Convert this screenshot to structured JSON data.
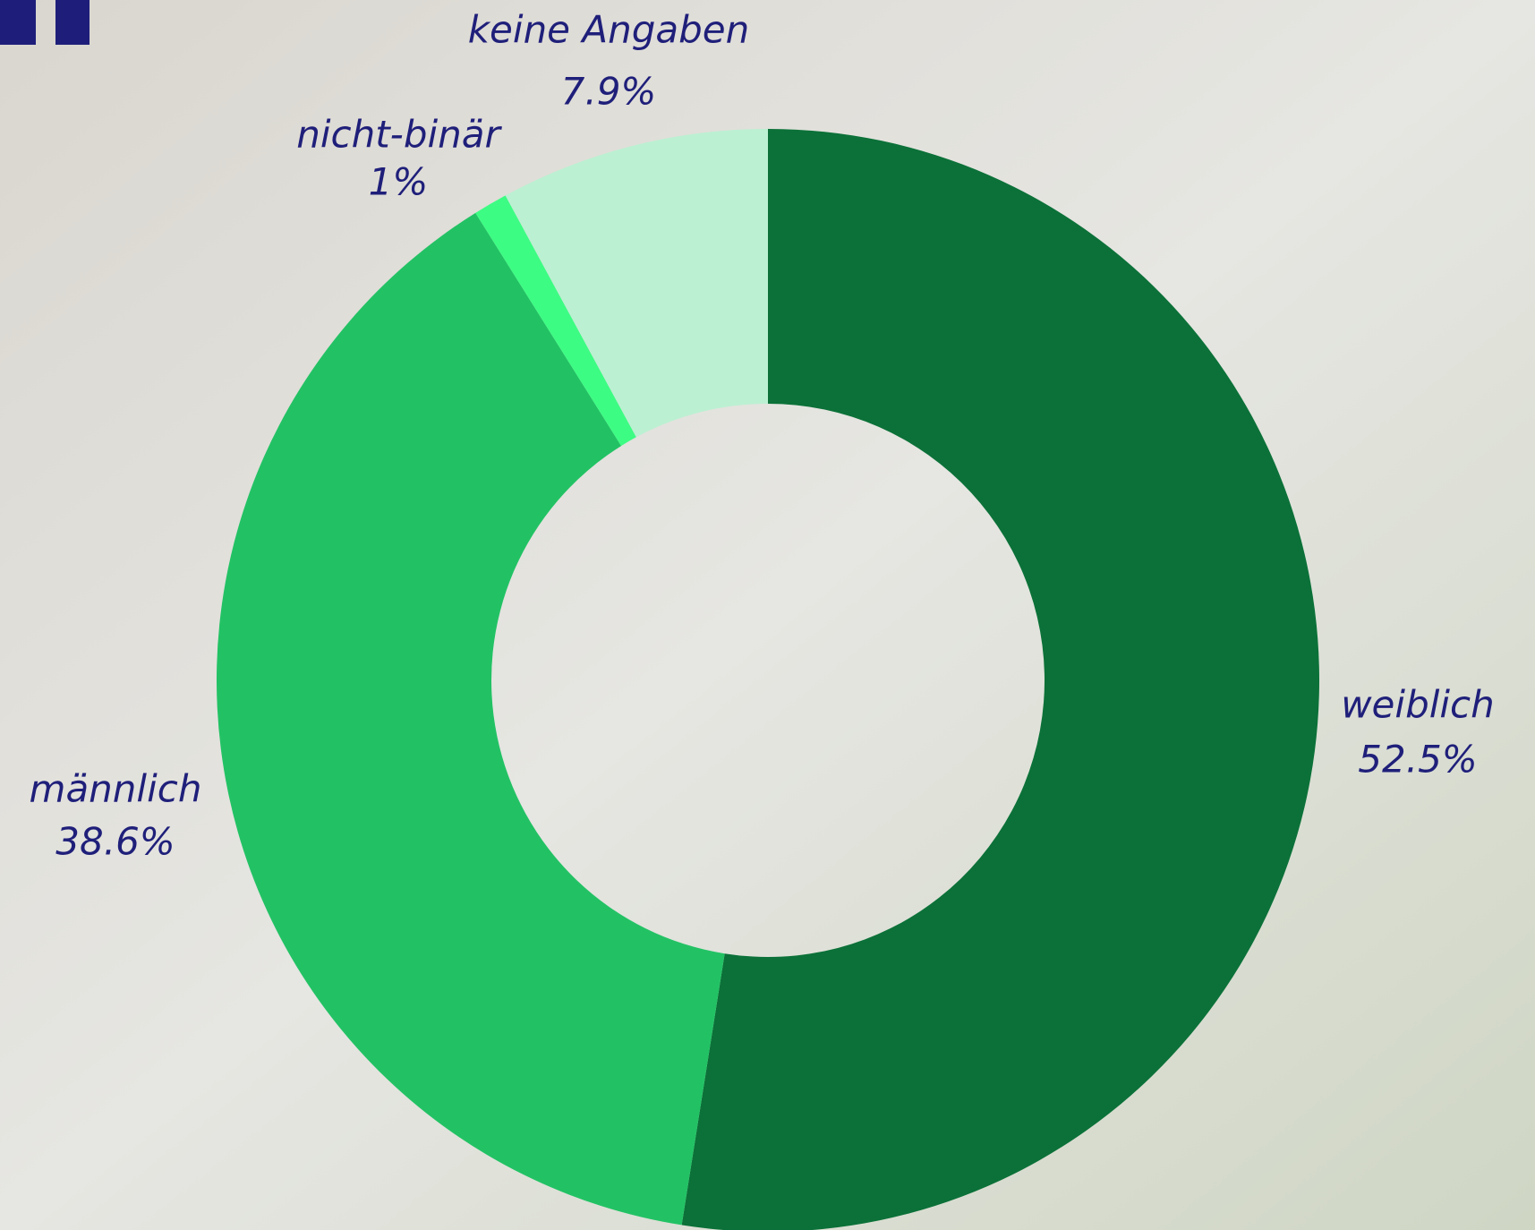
{
  "chart_data": {
    "type": "donut",
    "categories": [
      "weiblich",
      "männlich",
      "nicht-binär",
      "keine Angaben"
    ],
    "values": [
      52.5,
      38.6,
      1,
      7.9
    ],
    "value_labels": [
      "52.5%",
      "38.6%",
      "1%",
      "7.9%"
    ],
    "colors": [
      "#0b7138",
      "#22c264",
      "#3dfc83",
      "#bcf0d2"
    ]
  }
}
